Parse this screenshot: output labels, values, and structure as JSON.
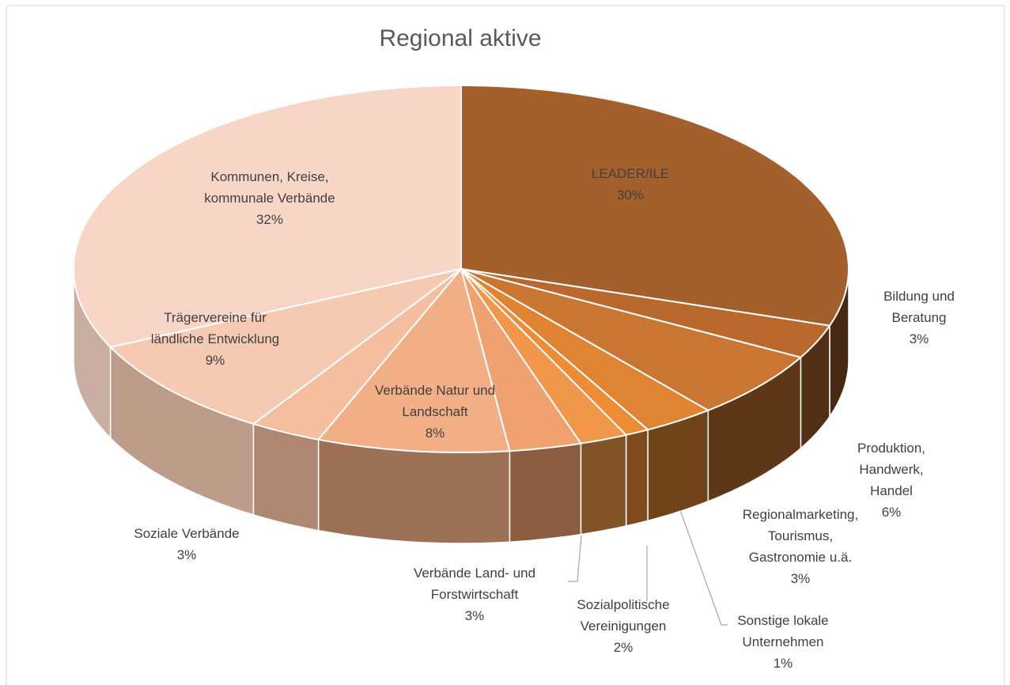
{
  "chart_data": {
    "type": "pie",
    "title": "Regional aktive",
    "categories": [
      "LEADER/ILE",
      "Bildung und\nBeratung",
      "Produktion, Handwerk,\nHandel",
      "Regionalmarketing,\nTourismus,\nGastronomie u.ä.",
      "Sonstige lokale\nUnternehmen",
      "Sozialpolitische\nVereinigungen",
      "Verbände Land- und\nForstwirtschaft",
      "Verbände Natur und\nLandschaft",
      "Soziale Verbände",
      "Trägervereine für\nländliche Entwicklung",
      "Kommunen, Kreise,\nkommunale Verbände"
    ],
    "values": [
      30,
      3,
      6,
      3,
      1,
      2,
      3,
      8,
      3,
      9,
      32
    ],
    "value_labels": [
      "30%",
      "3%",
      "6%",
      "3%",
      "1%",
      "2%",
      "3%",
      "8%",
      "3%",
      "9%",
      "32%"
    ],
    "colors": [
      "#A3602C",
      "#B9692E",
      "#C97632",
      "#DE8432",
      "#EE8C36",
      "#F0974A",
      "#EFA170",
      "#F2AF85",
      "#F4BE9F",
      "#F6CAB2",
      "#F8D6C7"
    ]
  }
}
